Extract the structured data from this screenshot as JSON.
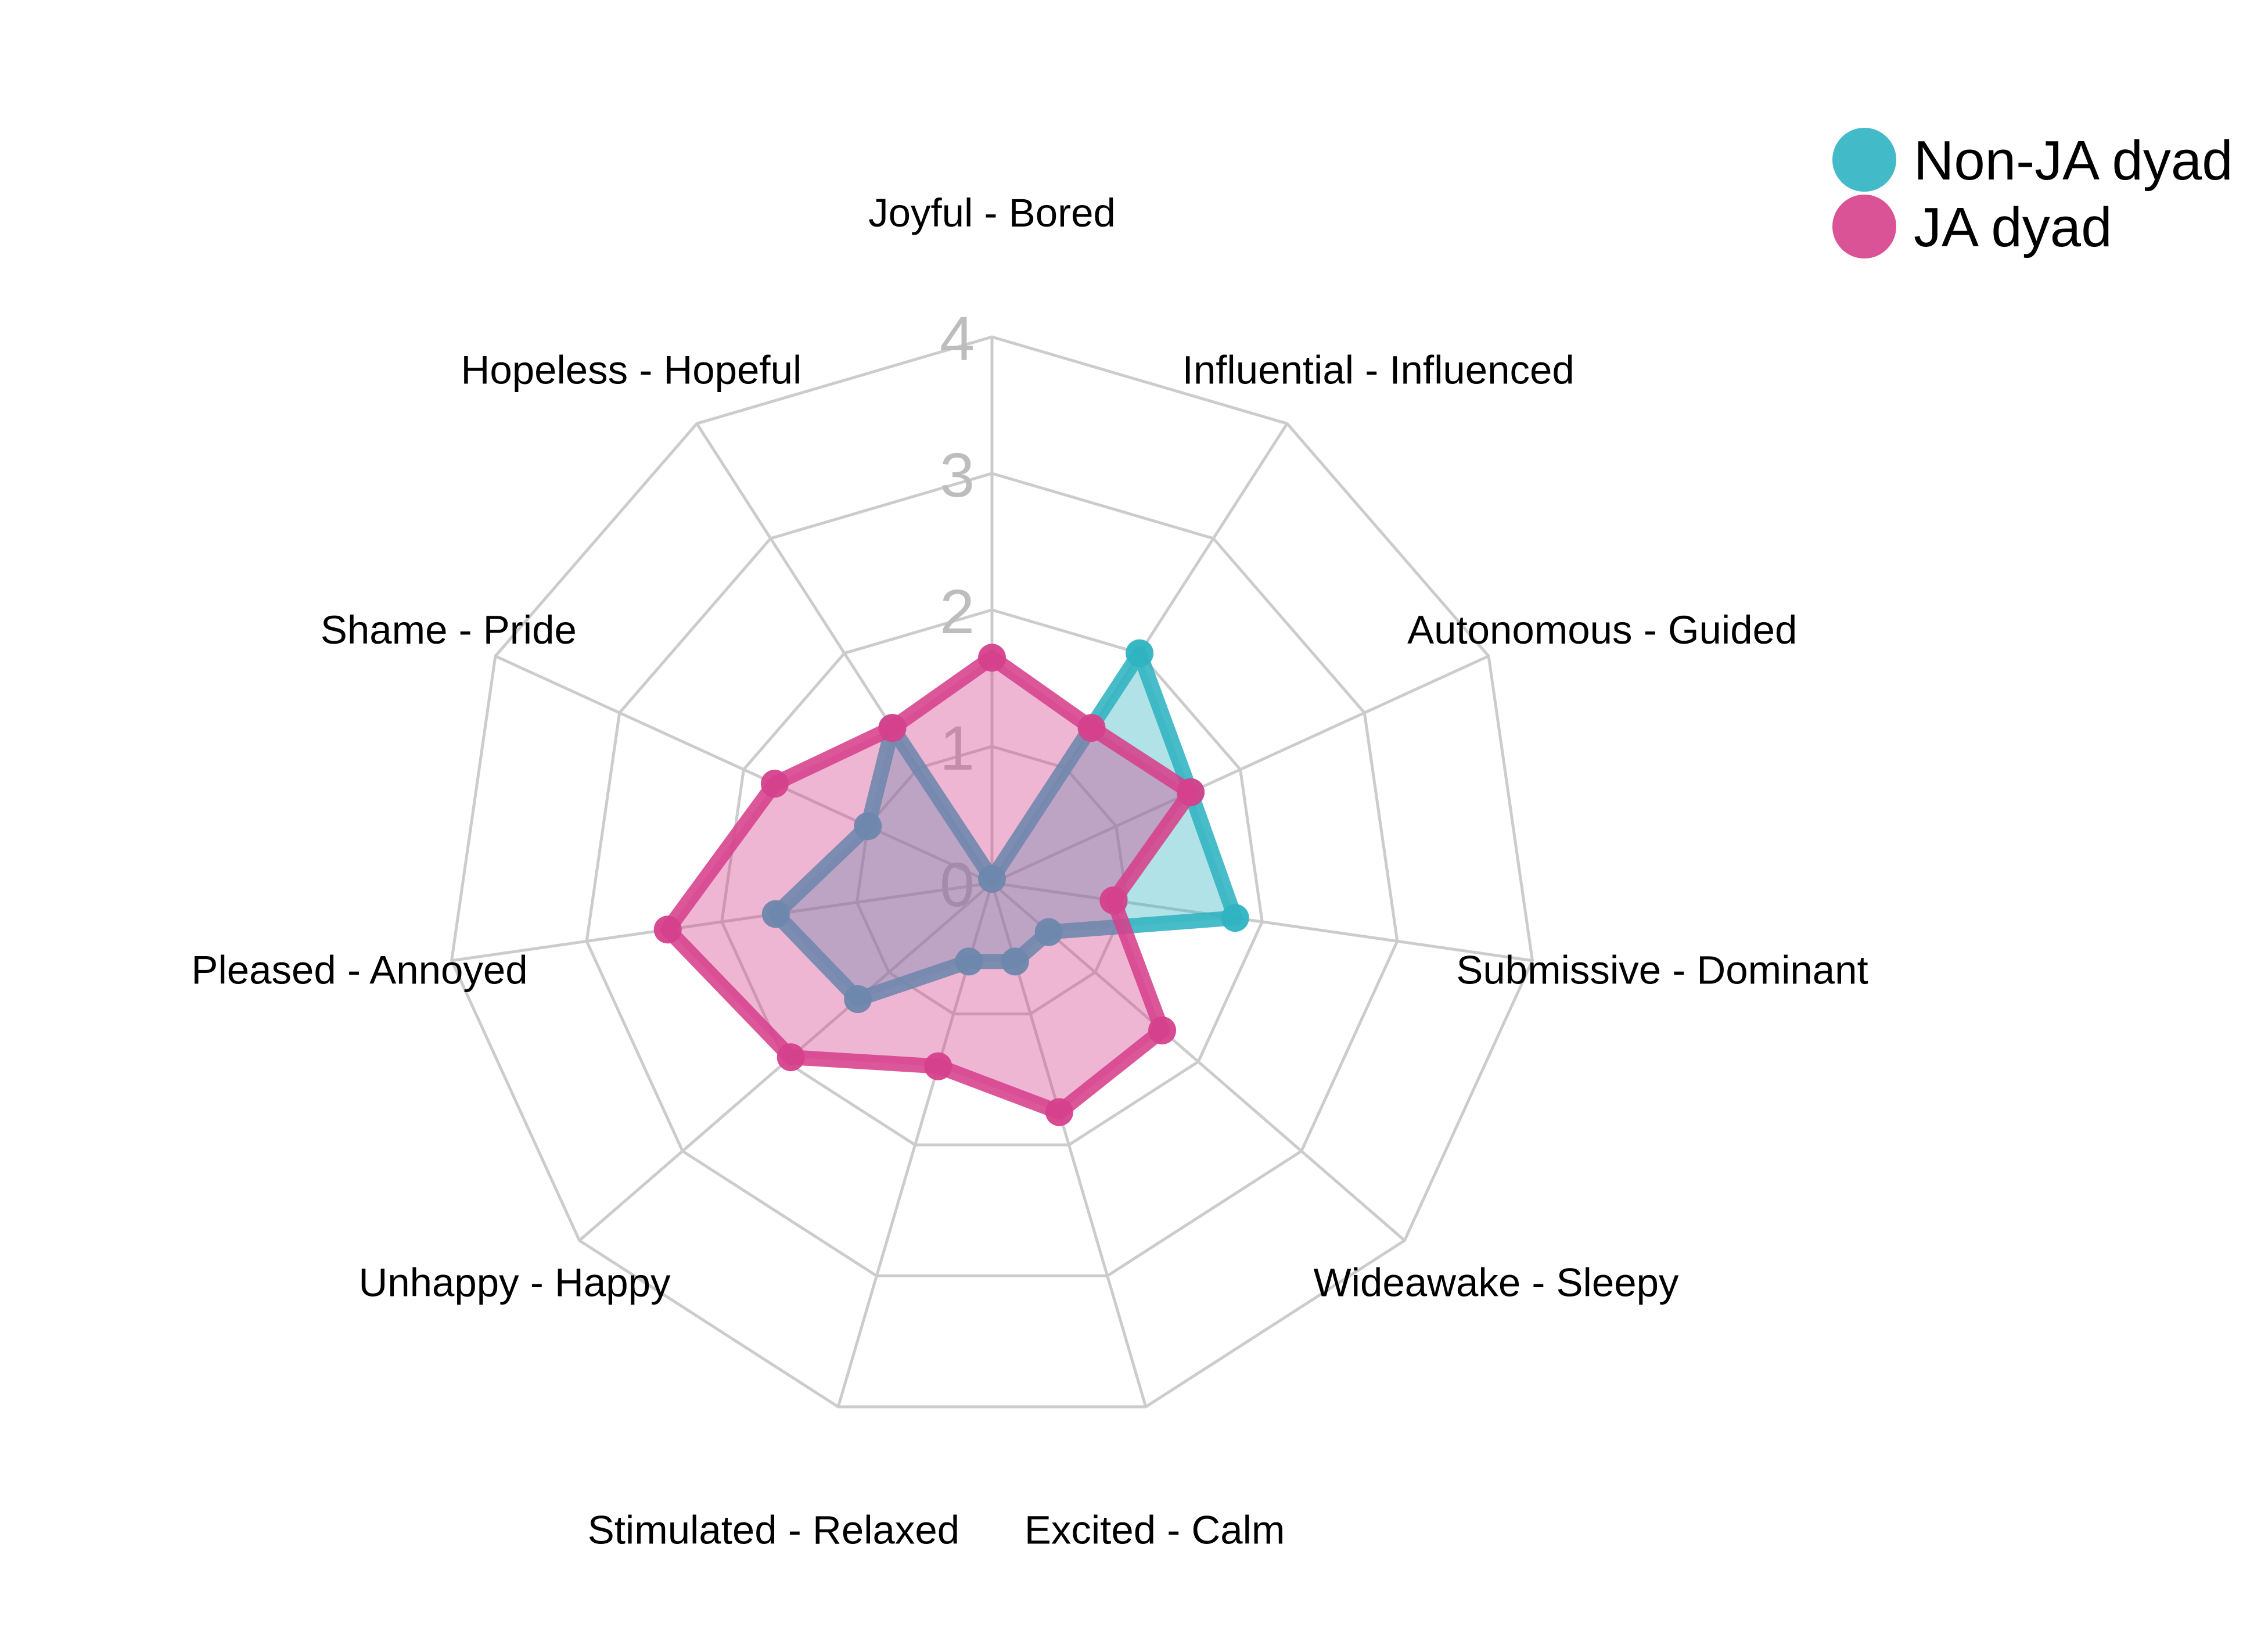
{
  "chart_data": {
    "type": "radar",
    "axes": [
      "Joyful - Bored",
      "Influential - Influenced",
      "Autonomous - Guided",
      "Submissive - Dominant",
      "Wideawake - Sleepy",
      "Excited - Calm",
      "Stimulated - Relaxed",
      "Unhappy - Happy",
      "Pleased - Annoyed",
      "Shame - Pride",
      "Hopeless - Hopeful"
    ],
    "ticks": [
      "0",
      "1",
      "2",
      "3",
      "4"
    ],
    "rlim": [
      0,
      4
    ],
    "grid": true,
    "legend_position": "top-right",
    "series": [
      {
        "name": "Non-JA dyad",
        "color": "#2fb3c1",
        "values": [
          0.03,
          2.0,
          1.6,
          1.8,
          0.55,
          0.6,
          0.6,
          1.3,
          1.6,
          1.0,
          1.35
        ]
      },
      {
        "name": "JA dyad",
        "color": "#d6408c",
        "values": [
          1.65,
          1.35,
          1.6,
          0.9,
          1.65,
          1.75,
          1.4,
          1.95,
          2.4,
          1.75,
          1.35
        ]
      }
    ]
  }
}
